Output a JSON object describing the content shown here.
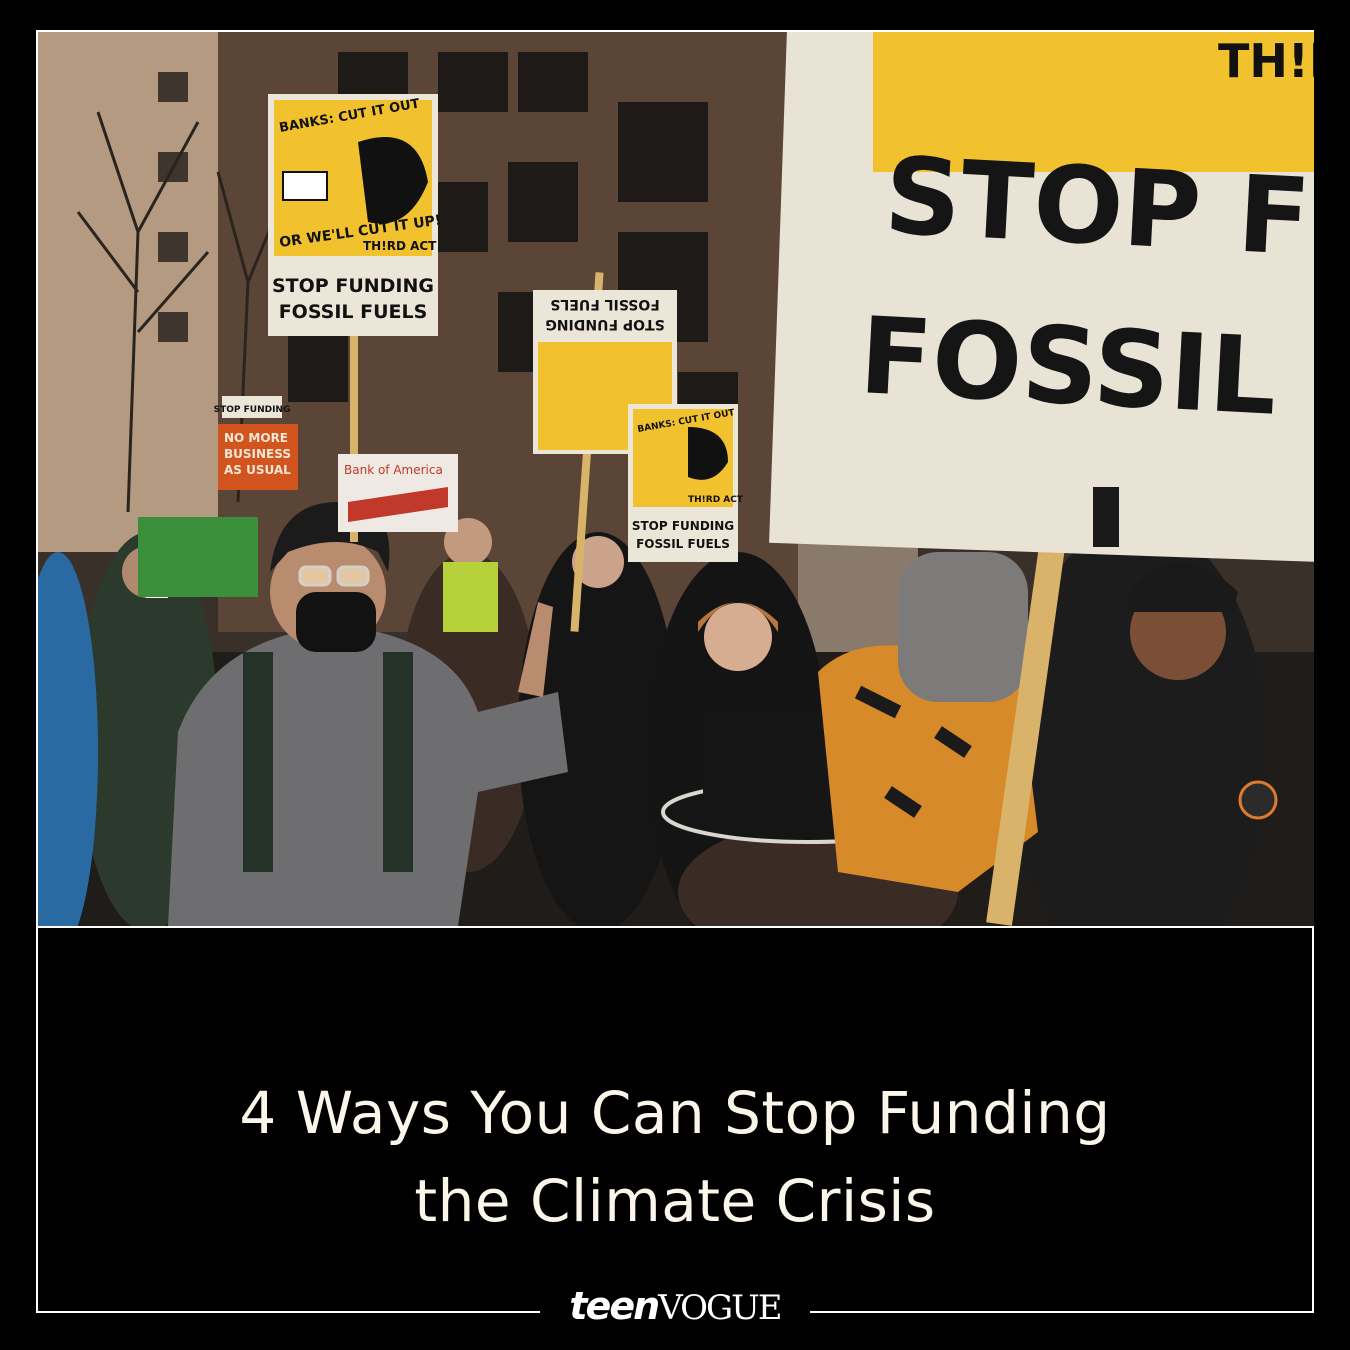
{
  "photo": {
    "signs": {
      "main_top": "TH!RD",
      "main_line1": "STOP FUNDI",
      "main_line2": "FOSSIL FUEL",
      "left_top": "BANKS: CUT IT OUT",
      "left_mid": "OR WE'LL CUT IT UP!",
      "left_brand": "TH!RD ACT",
      "left_line1": "STOP FUNDING",
      "left_line2": "FOSSIL FUELS",
      "small_right_top": "BANKS: CUT IT OUT",
      "small_right_brand": "TH!RD ACT",
      "small_right_line1": "STOP FUNDING",
      "small_right_line2": "FOSSIL FUELS",
      "orange_line1": "NO MORE",
      "orange_line2": "BUSINESS",
      "orange_line3": "AS USUAL",
      "orange_header": "STOP FUNDING",
      "bank_sign": "Bank of America",
      "pin": "TH!RD ACT"
    }
  },
  "headline": {
    "line1": "4 Ways You Can Stop Funding",
    "line2": "the Climate Crisis"
  },
  "brand": {
    "teen": "teen",
    "vogue": "VOGUE"
  },
  "colors": {
    "background": "#000000",
    "headline": "#fbf6ea",
    "sign_yellow": "#f2c12e",
    "frame": "#ffffff"
  }
}
